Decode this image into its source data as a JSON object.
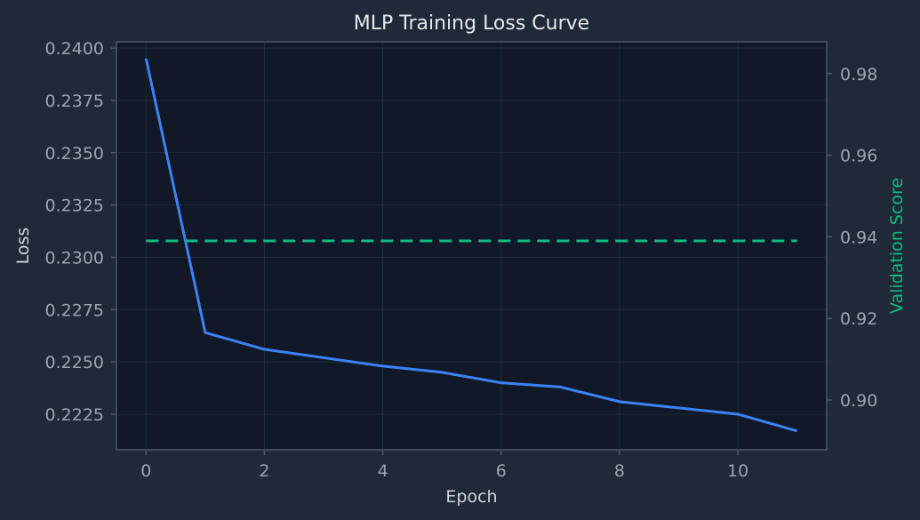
{
  "chart_data": {
    "type": "line",
    "title": "MLP Training Loss Curve",
    "xlabel": "Epoch",
    "ylabel": "Loss",
    "y2label": "Validation Score",
    "xlim": [
      -0.5,
      11.5
    ],
    "ylim": [
      0.2208,
      0.2403
    ],
    "y2lim": [
      0.8878,
      0.9878
    ],
    "xticks": [
      0,
      2,
      4,
      6,
      8,
      10
    ],
    "yticks": [
      0.2225,
      0.225,
      0.2275,
      0.23,
      0.2325,
      0.235,
      0.2375,
      0.24
    ],
    "yticklabels": [
      "0.2225",
      "0.2250",
      "0.2275",
      "0.2300",
      "0.2325",
      "0.2350",
      "0.2375",
      "0.2400"
    ],
    "y2ticks": [
      0.9,
      0.92,
      0.94,
      0.96,
      0.98
    ],
    "y2ticklabels": [
      "0.90",
      "0.92",
      "0.94",
      "0.96",
      "0.98"
    ],
    "grid": true,
    "series": [
      {
        "axis": "left",
        "style": "solid",
        "color": "#3b82f6",
        "x": [
          0,
          1,
          2,
          3,
          4,
          5,
          6,
          7,
          8,
          9,
          10,
          11
        ],
        "values": [
          0.2395,
          0.2264,
          0.2256,
          0.2252,
          0.2248,
          0.2245,
          0.224,
          0.2238,
          0.2231,
          0.2228,
          0.2225,
          0.2217
        ]
      },
      {
        "axis": "right",
        "style": "dashed",
        "color": "#10b981",
        "x": [
          0,
          11
        ],
        "values": [
          0.939,
          0.939
        ]
      }
    ]
  },
  "colors": {
    "background": "#1f2937",
    "plot_area": "#111827",
    "spine": "#4b5563",
    "grid": "#1f2a3a",
    "text": "#e5e7eb",
    "tick_text": "#9ca3af",
    "loss_line": "#3b82f6",
    "validation_line": "#10b981"
  }
}
